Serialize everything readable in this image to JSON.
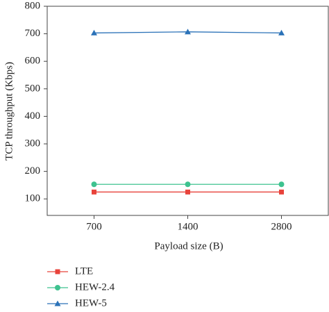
{
  "chart_data": {
    "type": "line",
    "x_label": "Payload size (B)",
    "y_label": "TCP throughput (Kbps)",
    "categories": [
      "700",
      "1400",
      "2800"
    ],
    "series": [
      {
        "name": "LTE",
        "color": "#e8433b",
        "marker": "square",
        "values": [
          125,
          125,
          125
        ]
      },
      {
        "name": "HEW-2.4",
        "color": "#3ec28f",
        "marker": "circle",
        "values": [
          153,
          153,
          153
        ]
      },
      {
        "name": "HEW-5",
        "color": "#2b72b8",
        "marker": "triangle",
        "values": [
          703,
          707,
          703
        ]
      }
    ],
    "ylim": [
      40,
      800
    ],
    "yticks": [
      100,
      200,
      300,
      400,
      500,
      600,
      700,
      800
    ],
    "legend": "bottom-left"
  }
}
